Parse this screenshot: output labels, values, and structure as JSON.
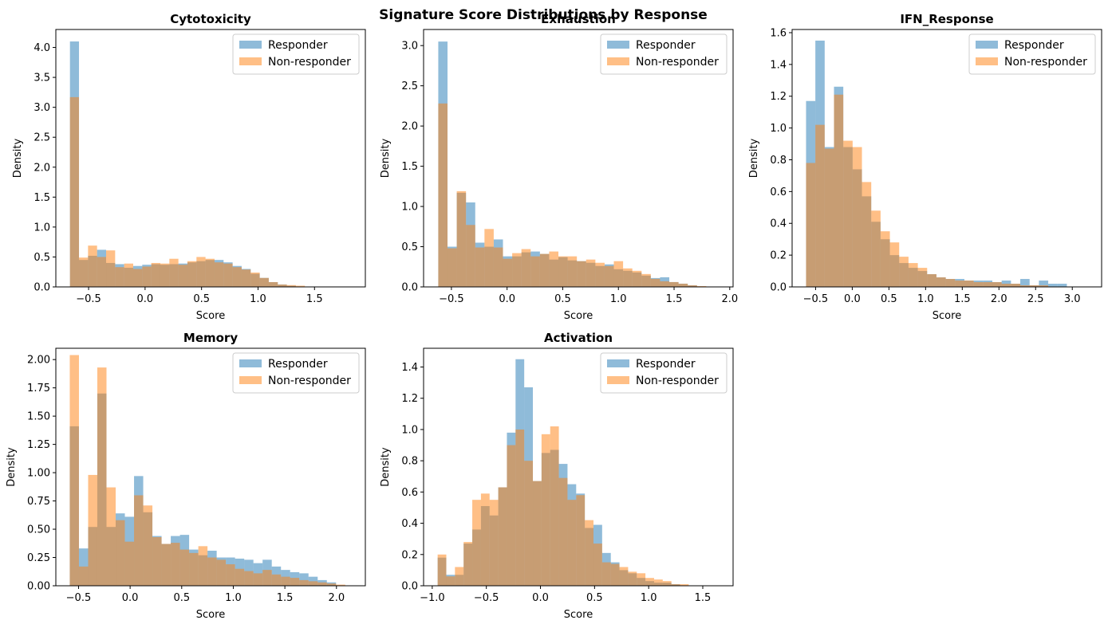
{
  "figure": {
    "suptitle": "Signature Score Distributions by Response"
  },
  "colors": {
    "responder": "#1f77b4",
    "non_responder": "#ff7f0e",
    "bar_alpha": 0.5
  },
  "chart_data": [
    {
      "type": "bar",
      "title": "Cytotoxicity",
      "xlabel": "Score",
      "ylabel": "Density",
      "xlim": [
        -0.79,
        1.95
      ],
      "ylim": [
        0,
        4.3
      ],
      "xticks": [
        -0.5,
        0.0,
        0.5,
        1.0,
        1.5
      ],
      "xtick_labels": [
        "−0.5",
        "0.0",
        "0.5",
        "1.0",
        "1.5"
      ],
      "yticks": [
        0,
        0.5,
        1.0,
        1.5,
        2.0,
        2.5,
        3.0,
        3.5,
        4.0
      ],
      "ytick_labels": [
        "0.0",
        "0.5",
        "1.0",
        "1.5",
        "2.0",
        "2.5",
        "3.0",
        "3.5",
        "4.0"
      ],
      "legend": [
        "Responder",
        "Non-responder"
      ],
      "legend_loc": "upper right",
      "series": [
        {
          "name": "Responder",
          "edges_start": -0.665,
          "width": 0.08,
          "values": [
            4.1,
            0.45,
            0.52,
            0.62,
            0.4,
            0.38,
            0.32,
            0.35,
            0.37,
            0.38,
            0.37,
            0.38,
            0.39,
            0.41,
            0.43,
            0.45,
            0.45,
            0.41,
            0.35,
            0.3,
            0.22,
            0.15,
            0.08,
            0.04,
            0.02
          ]
        },
        {
          "name": "Non-responder",
          "edges_start": -0.665,
          "width": 0.08,
          "values": [
            3.17,
            0.49,
            0.69,
            0.5,
            0.61,
            0.33,
            0.39,
            0.3,
            0.34,
            0.4,
            0.39,
            0.47,
            0.37,
            0.43,
            0.5,
            0.47,
            0.41,
            0.39,
            0.33,
            0.29,
            0.24,
            0.15,
            0.08,
            0.04,
            0.03,
            0.02
          ]
        }
      ]
    },
    {
      "type": "bar",
      "title": "Exhaustion",
      "xlabel": "Score",
      "ylabel": "Density",
      "xlim": [
        -0.75,
        2.03
      ],
      "ylim": [
        0,
        3.2
      ],
      "xticks": [
        -0.5,
        0.0,
        0.5,
        1.0,
        1.5,
        2.0
      ],
      "xtick_labels": [
        "−0.5",
        "0.0",
        "0.5",
        "1.0",
        "1.5",
        "2.0"
      ],
      "yticks": [
        0,
        0.5,
        1.0,
        1.5,
        2.0,
        2.5,
        3.0
      ],
      "ytick_labels": [
        "0.0",
        "0.5",
        "1.0",
        "1.5",
        "2.0",
        "2.5",
        "3.0"
      ],
      "legend": [
        "Responder",
        "Non-responder"
      ],
      "legend_loc": "upper right",
      "series": [
        {
          "name": "Responder",
          "edges_start": -0.618,
          "width": 0.083,
          "values": [
            3.05,
            0.5,
            1.17,
            1.05,
            0.55,
            0.5,
            0.59,
            0.38,
            0.38,
            0.43,
            0.44,
            0.41,
            0.34,
            0.37,
            0.33,
            0.32,
            0.3,
            0.26,
            0.28,
            0.22,
            0.2,
            0.18,
            0.14,
            0.11,
            0.12,
            0.06,
            0.04,
            0.02
          ]
        },
        {
          "name": "Non-responder",
          "edges_start": -0.618,
          "width": 0.083,
          "values": [
            2.28,
            0.48,
            1.19,
            0.77,
            0.49,
            0.72,
            0.49,
            0.35,
            0.42,
            0.47,
            0.38,
            0.41,
            0.44,
            0.38,
            0.38,
            0.32,
            0.34,
            0.3,
            0.26,
            0.32,
            0.23,
            0.2,
            0.16,
            0.1,
            0.07,
            0.06,
            0.04,
            0.02,
            0.01
          ]
        }
      ]
    },
    {
      "type": "bar",
      "title": "IFN_Response",
      "xlabel": "Score",
      "ylabel": "Density",
      "xlim": [
        -0.82,
        3.4
      ],
      "ylim": [
        0,
        1.62
      ],
      "xticks": [
        -0.5,
        0.0,
        0.5,
        1.0,
        1.5,
        2.0,
        2.5,
        3.0
      ],
      "xtick_labels": [
        "−0.5",
        "0.0",
        "0.5",
        "1.0",
        "1.5",
        "2.0",
        "2.5",
        "3.0"
      ],
      "yticks": [
        0,
        0.2,
        0.4,
        0.6,
        0.8,
        1.0,
        1.2,
        1.4,
        1.6
      ],
      "ytick_labels": [
        "0.0",
        "0.2",
        "0.4",
        "0.6",
        "0.8",
        "1.0",
        "1.2",
        "1.4",
        "1.6"
      ],
      "legend": [
        "Responder",
        "Non-responder"
      ],
      "legend_loc": "upper right",
      "series": [
        {
          "name": "Responder",
          "edges_start": -0.63,
          "width": 0.127,
          "values": [
            1.17,
            1.55,
            0.88,
            1.26,
            0.88,
            0.74,
            0.57,
            0.41,
            0.3,
            0.2,
            0.15,
            0.12,
            0.1,
            0.08,
            0.06,
            0.05,
            0.05,
            0.04,
            0.04,
            0.04,
            0.03,
            0.04,
            0.02,
            0.05,
            0.01,
            0.04,
            0.02,
            0.02
          ]
        },
        {
          "name": "Non-responder",
          "edges_start": -0.63,
          "width": 0.127,
          "values": [
            0.78,
            1.02,
            0.87,
            1.21,
            0.92,
            0.88,
            0.66,
            0.48,
            0.35,
            0.28,
            0.19,
            0.15,
            0.12,
            0.08,
            0.06,
            0.05,
            0.04,
            0.04,
            0.03,
            0.03,
            0.03,
            0.02,
            0.02,
            0.01,
            0.01,
            0.01
          ]
        }
      ]
    },
    {
      "type": "bar",
      "title": "Memory",
      "xlabel": "Score",
      "ylabel": "Density",
      "xlim": [
        -0.72,
        2.28
      ],
      "ylim": [
        0,
        2.1
      ],
      "xticks": [
        -0.5,
        0.0,
        0.5,
        1.0,
        1.5,
        2.0
      ],
      "xtick_labels": [
        "−0.5",
        "0.0",
        "0.5",
        "1.0",
        "1.5",
        "2.0"
      ],
      "yticks": [
        0,
        0.25,
        0.5,
        0.75,
        1.0,
        1.25,
        1.5,
        1.75,
        2.0
      ],
      "ytick_labels": [
        "0.00",
        "0.25",
        "0.50",
        "0.75",
        "1.00",
        "1.25",
        "1.50",
        "1.75",
        "2.00"
      ],
      "legend": [
        "Responder",
        "Non-responder"
      ],
      "legend_loc": "upper right",
      "series": [
        {
          "name": "Responder",
          "edges_start": -0.585,
          "width": 0.089,
          "values": [
            1.41,
            0.33,
            0.52,
            1.7,
            0.52,
            0.64,
            0.61,
            0.97,
            0.65,
            0.44,
            0.37,
            0.44,
            0.45,
            0.32,
            0.27,
            0.31,
            0.25,
            0.25,
            0.24,
            0.23,
            0.2,
            0.23,
            0.17,
            0.14,
            0.12,
            0.11,
            0.08,
            0.05,
            0.03
          ]
        },
        {
          "name": "Non-responder",
          "edges_start": -0.585,
          "width": 0.089,
          "values": [
            2.04,
            0.17,
            0.98,
            1.93,
            0.87,
            0.58,
            0.39,
            0.8,
            0.71,
            0.43,
            0.37,
            0.38,
            0.32,
            0.29,
            0.35,
            0.25,
            0.23,
            0.19,
            0.15,
            0.13,
            0.11,
            0.14,
            0.1,
            0.08,
            0.07,
            0.05,
            0.04,
            0.03,
            0.02,
            0.01
          ]
        }
      ]
    },
    {
      "type": "bar",
      "title": "Activation",
      "xlabel": "Score",
      "ylabel": "Density",
      "xlim": [
        -1.08,
        1.78
      ],
      "ylim": [
        0,
        1.52
      ],
      "xticks": [
        -1.0,
        -0.5,
        0.0,
        0.5,
        1.0,
        1.5
      ],
      "xtick_labels": [
        "−1.0",
        "−0.5",
        "0.0",
        "0.5",
        "1.0",
        "1.5"
      ],
      "yticks": [
        0,
        0.2,
        0.4,
        0.6,
        0.8,
        1.0,
        1.2,
        1.4
      ],
      "ytick_labels": [
        "0.0",
        "0.2",
        "0.4",
        "0.6",
        "0.8",
        "1.0",
        "1.2",
        "1.4"
      ],
      "legend": [
        "Responder",
        "Non-responder"
      ],
      "legend_loc": "upper right",
      "series": [
        {
          "name": "Responder",
          "edges_start": -0.95,
          "width": 0.08,
          "values": [
            0.18,
            0.07,
            0.07,
            0.27,
            0.36,
            0.51,
            0.45,
            0.63,
            0.98,
            1.45,
            1.27,
            0.67,
            0.85,
            0.87,
            0.78,
            0.65,
            0.59,
            0.37,
            0.39,
            0.21,
            0.15,
            0.1,
            0.08,
            0.05,
            0.03,
            0.02,
            0.02,
            0.01
          ]
        },
        {
          "name": "Non-responder",
          "edges_start": -0.95,
          "width": 0.08,
          "values": [
            0.2,
            0.06,
            0.12,
            0.28,
            0.55,
            0.59,
            0.55,
            0.63,
            0.9,
            1.0,
            0.8,
            0.67,
            0.97,
            1.02,
            0.69,
            0.55,
            0.58,
            0.42,
            0.27,
            0.15,
            0.14,
            0.12,
            0.09,
            0.08,
            0.05,
            0.04,
            0.03,
            0.01,
            0.01
          ]
        }
      ]
    }
  ]
}
